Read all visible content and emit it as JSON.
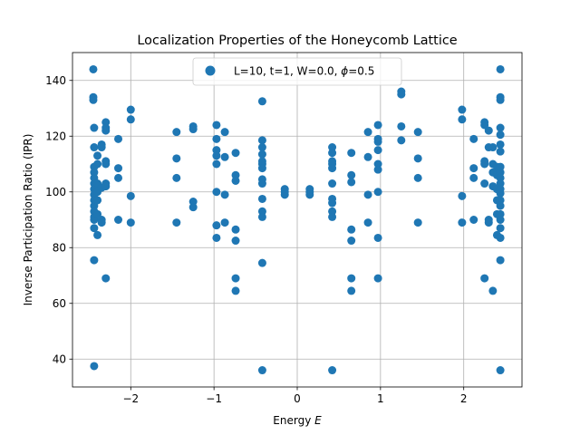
{
  "chart_data": {
    "type": "scatter",
    "title": "Localization Properties of the Honeycomb Lattice",
    "xlabel": "Energy E",
    "xlabel_prefix": "Energy ",
    "xlabel_var": "E",
    "ylabel": "Inverse Participation Ratio (IPR)",
    "xlim": [
      -2.7,
      2.7
    ],
    "ylim": [
      30,
      150
    ],
    "x_ticks": [
      -2,
      -1,
      0,
      1,
      2
    ],
    "x_tick_labels": [
      "−2",
      "−1",
      "0",
      "1",
      "2"
    ],
    "y_ticks": [
      40,
      60,
      80,
      100,
      120,
      140
    ],
    "y_tick_labels": [
      "40",
      "60",
      "80",
      "100",
      "120",
      "140"
    ],
    "grid": true,
    "legend_position": "top-center",
    "series": [
      {
        "legend_label": "L=10, t=1, W=0.0, ϕ=0.5",
        "legend_prefix": "L=10, t=1, W=0.0, ",
        "legend_var": "ϕ",
        "legend_suffix": "=0.5",
        "color": "#1f77b4",
        "points": [
          [
            -2.45,
            144
          ],
          [
            -2.45,
            134
          ],
          [
            -2.45,
            133
          ],
          [
            -2.44,
            123
          ],
          [
            -2.44,
            116
          ],
          [
            -2.44,
            109
          ],
          [
            -2.44,
            107
          ],
          [
            -2.44,
            105
          ],
          [
            -2.44,
            103
          ],
          [
            -2.44,
            101
          ],
          [
            -2.44,
            99
          ],
          [
            -2.44,
            97
          ],
          [
            -2.44,
            95
          ],
          [
            -2.44,
            93
          ],
          [
            -2.44,
            91
          ],
          [
            -2.44,
            90
          ],
          [
            -2.44,
            87
          ],
          [
            -2.44,
            75.5
          ],
          [
            -2.44,
            37.5
          ],
          [
            -2.4,
            113
          ],
          [
            -2.4,
            110
          ],
          [
            -2.4,
            103
          ],
          [
            -2.4,
            100
          ],
          [
            -2.4,
            97
          ],
          [
            -2.4,
            92
          ],
          [
            -2.4,
            84.5
          ],
          [
            -2.35,
            117
          ],
          [
            -2.35,
            116
          ],
          [
            -2.35,
            101.5
          ],
          [
            -2.35,
            90
          ],
          [
            -2.35,
            89
          ],
          [
            -2.3,
            125
          ],
          [
            -2.3,
            123
          ],
          [
            -2.3,
            122
          ],
          [
            -2.3,
            111
          ],
          [
            -2.3,
            110
          ],
          [
            -2.3,
            103
          ],
          [
            -2.3,
            102
          ],
          [
            -2.3,
            69
          ],
          [
            -2.15,
            119
          ],
          [
            -2.15,
            108.5
          ],
          [
            -2.15,
            105
          ],
          [
            -2.15,
            90
          ],
          [
            -2.0,
            129.5
          ],
          [
            -2.0,
            126
          ],
          [
            -2.0,
            98.5
          ],
          [
            -2.0,
            89
          ],
          [
            -1.45,
            121.5
          ],
          [
            -1.45,
            112
          ],
          [
            -1.45,
            105
          ],
          [
            -1.45,
            89
          ],
          [
            -1.25,
            123.5
          ],
          [
            -1.25,
            122.5
          ],
          [
            -1.25,
            96.5
          ],
          [
            -1.25,
            94.5
          ],
          [
            -0.97,
            124
          ],
          [
            -0.97,
            119
          ],
          [
            -0.97,
            115
          ],
          [
            -0.97,
            113
          ],
          [
            -0.97,
            110
          ],
          [
            -0.97,
            100
          ],
          [
            -0.97,
            88
          ],
          [
            -0.97,
            83.5
          ],
          [
            -0.87,
            121.5
          ],
          [
            -0.87,
            112.5
          ],
          [
            -0.87,
            99
          ],
          [
            -0.87,
            89
          ],
          [
            -0.74,
            114
          ],
          [
            -0.74,
            106
          ],
          [
            -0.74,
            104
          ],
          [
            -0.74,
            86.5
          ],
          [
            -0.74,
            82.5
          ],
          [
            -0.74,
            69
          ],
          [
            -0.74,
            64.5
          ],
          [
            -0.42,
            132.5
          ],
          [
            -0.42,
            118.5
          ],
          [
            -0.42,
            116
          ],
          [
            -0.42,
            113.5
          ],
          [
            -0.42,
            111
          ],
          [
            -0.42,
            110
          ],
          [
            -0.42,
            108.5
          ],
          [
            -0.42,
            104.5
          ],
          [
            -0.42,
            103
          ],
          [
            -0.42,
            97.5
          ],
          [
            -0.42,
            93
          ],
          [
            -0.42,
            91
          ],
          [
            -0.42,
            74.5
          ],
          [
            -0.42,
            36
          ],
          [
            -0.15,
            101
          ],
          [
            -0.15,
            100
          ],
          [
            -0.15,
            99
          ],
          [
            0.15,
            101
          ],
          [
            0.15,
            100
          ],
          [
            0.15,
            99
          ],
          [
            0.42,
            116
          ],
          [
            0.42,
            114
          ],
          [
            0.42,
            111
          ],
          [
            0.42,
            110
          ],
          [
            0.42,
            108.5
          ],
          [
            0.42,
            103
          ],
          [
            0.42,
            97.5
          ],
          [
            0.42,
            96
          ],
          [
            0.42,
            93
          ],
          [
            0.42,
            91
          ],
          [
            0.42,
            36
          ],
          [
            0.65,
            114
          ],
          [
            0.65,
            106
          ],
          [
            0.65,
            103.5
          ],
          [
            0.65,
            86.5
          ],
          [
            0.65,
            82.5
          ],
          [
            0.65,
            69
          ],
          [
            0.65,
            64.5
          ],
          [
            0.85,
            121.5
          ],
          [
            0.85,
            112.5
          ],
          [
            0.85,
            99
          ],
          [
            0.85,
            89
          ],
          [
            0.97,
            124
          ],
          [
            0.97,
            119
          ],
          [
            0.97,
            118
          ],
          [
            0.97,
            115
          ],
          [
            0.97,
            110
          ],
          [
            0.97,
            108
          ],
          [
            0.97,
            100
          ],
          [
            0.97,
            83.5
          ],
          [
            0.97,
            69
          ],
          [
            1.25,
            136
          ],
          [
            1.25,
            135
          ],
          [
            1.25,
            123.5
          ],
          [
            1.25,
            118.5
          ],
          [
            1.45,
            121.5
          ],
          [
            1.45,
            112
          ],
          [
            1.45,
            105
          ],
          [
            1.45,
            89
          ],
          [
            1.98,
            129.5
          ],
          [
            1.98,
            126
          ],
          [
            1.98,
            98.5
          ],
          [
            1.98,
            89
          ],
          [
            2.12,
            119
          ],
          [
            2.12,
            108.5
          ],
          [
            2.12,
            105
          ],
          [
            2.12,
            90
          ],
          [
            2.25,
            125
          ],
          [
            2.25,
            124
          ],
          [
            2.25,
            111
          ],
          [
            2.25,
            110
          ],
          [
            2.25,
            103
          ],
          [
            2.25,
            69
          ],
          [
            2.3,
            122
          ],
          [
            2.3,
            116
          ],
          [
            2.3,
            90
          ],
          [
            2.3,
            89
          ],
          [
            2.35,
            116
          ],
          [
            2.35,
            110
          ],
          [
            2.35,
            107
          ],
          [
            2.35,
            102
          ],
          [
            2.35,
            64.5
          ],
          [
            2.4,
            109
          ],
          [
            2.4,
            107
          ],
          [
            2.4,
            106
          ],
          [
            2.4,
            101
          ],
          [
            2.4,
            97
          ],
          [
            2.4,
            92
          ],
          [
            2.4,
            84.5
          ],
          [
            2.44,
            144
          ],
          [
            2.44,
            134
          ],
          [
            2.44,
            133
          ],
          [
            2.44,
            123
          ],
          [
            2.44,
            120.5
          ],
          [
            2.44,
            117
          ],
          [
            2.44,
            114.5
          ],
          [
            2.44,
            109
          ],
          [
            2.44,
            107
          ],
          [
            2.44,
            105
          ],
          [
            2.44,
            103
          ],
          [
            2.44,
            101
          ],
          [
            2.44,
            99.5
          ],
          [
            2.44,
            97
          ],
          [
            2.44,
            95
          ],
          [
            2.44,
            92
          ],
          [
            2.44,
            90
          ],
          [
            2.44,
            87
          ],
          [
            2.44,
            83.5
          ],
          [
            2.44,
            75.5
          ],
          [
            2.44,
            36
          ]
        ]
      }
    ]
  }
}
